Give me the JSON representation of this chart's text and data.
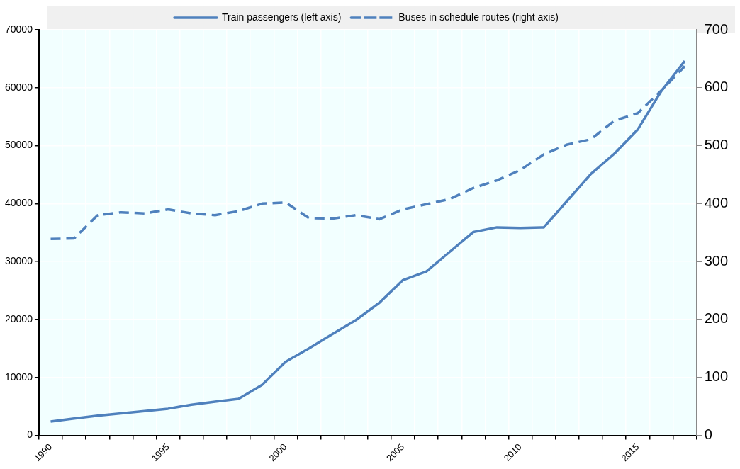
{
  "chart_data": {
    "type": "line",
    "categories": [
      "1990",
      null,
      null,
      null,
      null,
      "1995",
      null,
      null,
      null,
      null,
      "2000",
      null,
      null,
      null,
      null,
      "2005",
      null,
      null,
      null,
      null,
      "2010",
      null,
      null,
      null,
      null,
      "2015",
      null,
      null
    ],
    "series": [
      {
        "name": "Train passengers (left axis)",
        "color": "#4f81bd",
        "line_style": "solid",
        "values": [
          2400,
          2900,
          3400,
          3800,
          4200,
          4600,
          5300,
          5800,
          6300,
          8700,
          12700,
          15000,
          17500,
          19900,
          22900,
          26800,
          28300,
          31700,
          35100,
          35900,
          35800,
          35900,
          40500,
          45100,
          48600,
          52800,
          59400,
          64600
        ]
      },
      {
        "name": "Buses in schedule routes (right axis)",
        "color": "#4f81bd",
        "line_style": "dashed",
        "axis": "y2",
        "values": [
          339,
          340,
          380,
          385,
          383,
          390,
          383,
          380,
          387,
          400,
          402,
          375,
          374,
          380,
          373,
          390,
          399,
          408,
          427,
          440,
          458,
          485,
          502,
          511,
          543,
          556,
          595,
          637
        ]
      }
    ],
    "ylim": [
      0,
      70000
    ],
    "yticks": [
      0,
      10000,
      20000,
      30000,
      40000,
      50000,
      60000,
      70000
    ],
    "y2lim": [
      0,
      700
    ],
    "y2ticks": [
      0,
      100,
      200,
      300,
      400,
      500,
      600,
      700
    ],
    "grid": true,
    "legend": "top",
    "marker": "none"
  }
}
